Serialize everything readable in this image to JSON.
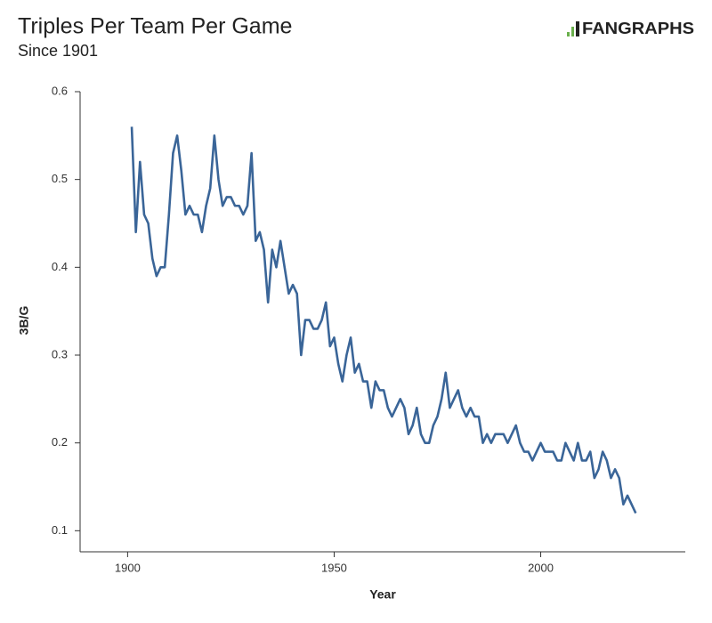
{
  "chart_data": {
    "type": "line",
    "title": "Triples Per Team Per Game",
    "subtitle": "Since 1901",
    "logo": "FANGRAPHS",
    "xlabel": "Year",
    "ylabel": "3B/G",
    "xlim": [
      1888.5,
      2035
    ],
    "xticks": [
      1900,
      1950,
      2000
    ],
    "ylim": [
      0.076,
      0.6
    ],
    "yticks": [
      0.1,
      0.2,
      0.3,
      0.4,
      0.5,
      0.6
    ],
    "grid": false,
    "series": [
      {
        "name": "3B/G",
        "color": "#3a6598",
        "x": [
          1901,
          1902,
          1903,
          1904,
          1905,
          1906,
          1907,
          1908,
          1909,
          1910,
          1911,
          1912,
          1913,
          1914,
          1915,
          1916,
          1917,
          1918,
          1919,
          1920,
          1921,
          1922,
          1923,
          1924,
          1925,
          1926,
          1927,
          1928,
          1929,
          1930,
          1931,
          1932,
          1933,
          1934,
          1935,
          1936,
          1937,
          1938,
          1939,
          1940,
          1941,
          1942,
          1943,
          1944,
          1945,
          1946,
          1947,
          1948,
          1949,
          1950,
          1951,
          1952,
          1953,
          1954,
          1955,
          1956,
          1957,
          1958,
          1959,
          1960,
          1961,
          1962,
          1963,
          1964,
          1965,
          1966,
          1967,
          1968,
          1969,
          1970,
          1971,
          1972,
          1973,
          1974,
          1975,
          1976,
          1977,
          1978,
          1979,
          1980,
          1981,
          1982,
          1983,
          1984,
          1985,
          1986,
          1987,
          1988,
          1989,
          1990,
          1991,
          1992,
          1993,
          1994,
          1995,
          1996,
          1997,
          1998,
          1999,
          2000,
          2001,
          2002,
          2003,
          2004,
          2005,
          2006,
          2007,
          2008,
          2009,
          2010,
          2011,
          2012,
          2013,
          2014,
          2015,
          2016,
          2017,
          2018,
          2019,
          2020,
          2021,
          2022,
          2023
        ],
        "values": [
          0.56,
          0.44,
          0.52,
          0.46,
          0.45,
          0.41,
          0.39,
          0.4,
          0.4,
          0.46,
          0.53,
          0.55,
          0.51,
          0.46,
          0.47,
          0.46,
          0.46,
          0.44,
          0.47,
          0.49,
          0.55,
          0.5,
          0.47,
          0.48,
          0.48,
          0.47,
          0.47,
          0.46,
          0.47,
          0.53,
          0.43,
          0.44,
          0.42,
          0.36,
          0.42,
          0.4,
          0.43,
          0.4,
          0.37,
          0.38,
          0.37,
          0.3,
          0.34,
          0.34,
          0.33,
          0.33,
          0.34,
          0.36,
          0.31,
          0.32,
          0.29,
          0.27,
          0.3,
          0.32,
          0.28,
          0.29,
          0.27,
          0.27,
          0.24,
          0.27,
          0.26,
          0.26,
          0.24,
          0.23,
          0.24,
          0.25,
          0.24,
          0.21,
          0.22,
          0.24,
          0.21,
          0.2,
          0.2,
          0.22,
          0.23,
          0.25,
          0.28,
          0.24,
          0.25,
          0.26,
          0.24,
          0.23,
          0.24,
          0.23,
          0.23,
          0.2,
          0.21,
          0.2,
          0.21,
          0.21,
          0.21,
          0.2,
          0.21,
          0.22,
          0.2,
          0.19,
          0.19,
          0.18,
          0.19,
          0.2,
          0.19,
          0.19,
          0.19,
          0.18,
          0.18,
          0.2,
          0.19,
          0.18,
          0.2,
          0.18,
          0.18,
          0.19,
          0.16,
          0.17,
          0.19,
          0.18,
          0.16,
          0.17,
          0.16,
          0.13,
          0.14,
          0.13,
          0.12
        ]
      }
    ]
  }
}
